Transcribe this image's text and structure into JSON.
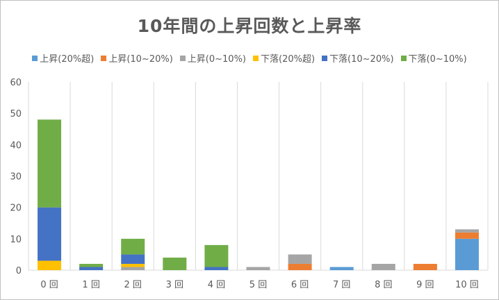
{
  "chart_data": {
    "type": "bar",
    "stacked": true,
    "title": "10年間の上昇回数と上昇率",
    "xlabel": "",
    "ylabel": "",
    "ylim": [
      0,
      60
    ],
    "yticks": [
      0,
      10,
      20,
      30,
      40,
      50,
      60
    ],
    "grid": "vertical category separators",
    "legend_position": "top",
    "categories": [
      "0 回",
      "1 回",
      "2 回",
      "3 回",
      "4 回",
      "5 回",
      "6 回",
      "7 回",
      "8 回",
      "9 回",
      "10 回"
    ],
    "series": [
      {
        "name": "上昇(20%超)",
        "color": "#5b9bd5",
        "values": [
          0,
          0,
          0,
          0,
          0,
          0,
          0,
          1,
          0,
          0,
          10
        ]
      },
      {
        "name": "上昇(10~20%)",
        "color": "#ed7d31",
        "values": [
          0,
          0,
          0,
          0,
          0,
          0,
          2,
          0,
          0,
          2,
          2
        ]
      },
      {
        "name": "上昇(0~10%)",
        "color": "#a5a5a5",
        "values": [
          0,
          0,
          1,
          0,
          0,
          1,
          3,
          0,
          2,
          0,
          1
        ]
      },
      {
        "name": "下落(20%超)",
        "color": "#ffc000",
        "values": [
          3,
          0,
          1,
          0,
          0,
          0,
          0,
          0,
          0,
          0,
          0
        ]
      },
      {
        "name": "下落(10~20%)",
        "color": "#4472c4",
        "values": [
          17,
          1,
          3,
          0,
          1,
          0,
          0,
          0,
          0,
          0,
          0
        ]
      },
      {
        "name": "下落(0~10%)",
        "color": "#70ad47",
        "values": [
          28,
          1,
          5,
          4,
          7,
          0,
          0,
          0,
          0,
          0,
          0
        ]
      }
    ]
  }
}
